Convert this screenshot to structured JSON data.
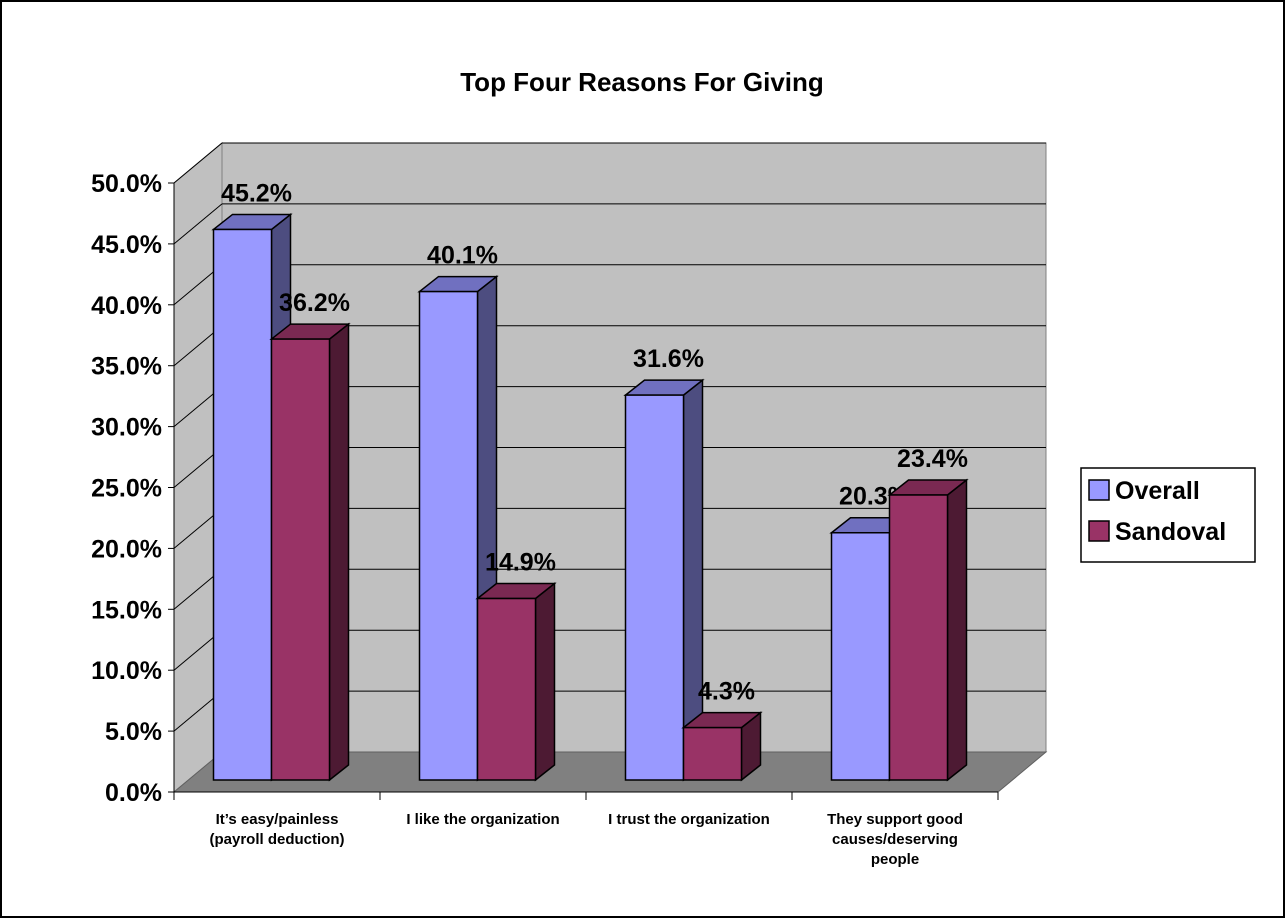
{
  "chart_data": {
    "type": "bar",
    "title": "Top Four Reasons For Giving",
    "categories": [
      [
        "It’s easy/painless",
        "(payroll deduction)"
      ],
      [
        "I like the organization"
      ],
      [
        "I trust the organization"
      ],
      [
        "They support good",
        "causes/deserving",
        "people"
      ]
    ],
    "series": [
      {
        "name": "Overall",
        "values": [
          45.2,
          40.1,
          31.6,
          20.3
        ],
        "labels": [
          "45.2%",
          "40.1%",
          "31.6%",
          "20.3%"
        ],
        "color": "#9999ff",
        "side_color": "#4d4d80",
        "top_color": "#7070c0"
      },
      {
        "name": "Sandoval",
        "values": [
          36.2,
          14.9,
          4.3,
          23.4
        ],
        "labels": [
          "36.2%",
          "14.9%",
          "4.3%",
          "23.4%"
        ],
        "color": "#993366",
        "side_color": "#4d1a33",
        "top_color": "#7a2952"
      }
    ],
    "ylim": [
      0,
      50
    ],
    "yticks": [
      "0.0%",
      "5.0%",
      "10.0%",
      "15.0%",
      "20.0%",
      "25.0%",
      "30.0%",
      "35.0%",
      "40.0%",
      "45.0%",
      "50.0%"
    ],
    "grid": true,
    "legend_position": "right",
    "wall_color": "#c0c0c0",
    "floor_color": "#808080"
  }
}
